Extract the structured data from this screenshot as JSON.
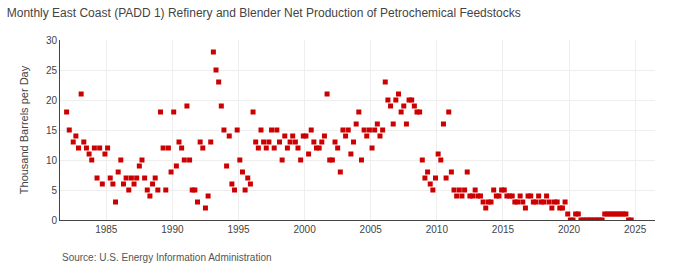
{
  "chart_data": {
    "type": "scatter",
    "title": "Monthly East Coast (PADD 1) Refinery and Blender Net Production of Petrochemical Feedstocks",
    "ylabel": "Thousand Barrels per Day",
    "annotations": [
      "Source: U.S. Energy Information Administration"
    ],
    "color": "#cc0000",
    "marker": "square",
    "grid": true,
    "xlim": [
      1981.5,
      2026.5
    ],
    "ylim": [
      0,
      30
    ],
    "xticks": [
      1985,
      1990,
      1995,
      2000,
      2005,
      2010,
      2015,
      2020,
      2025
    ],
    "yticks": [
      0,
      5,
      10,
      15,
      20,
      25,
      30
    ],
    "x": [
      1982.0,
      1982.2,
      1982.5,
      1982.7,
      1982.9,
      1983.1,
      1983.3,
      1983.5,
      1983.7,
      1983.9,
      1984.1,
      1984.3,
      1984.5,
      1984.7,
      1984.9,
      1985.1,
      1985.3,
      1985.5,
      1985.7,
      1985.9,
      1986.1,
      1986.3,
      1986.5,
      1986.7,
      1986.9,
      1987.1,
      1987.3,
      1987.5,
      1987.7,
      1987.9,
      1988.1,
      1988.3,
      1988.5,
      1988.7,
      1988.9,
      1989.1,
      1989.3,
      1989.5,
      1989.7,
      1989.9,
      1990.1,
      1990.3,
      1990.5,
      1990.7,
      1990.9,
      1991.1,
      1991.3,
      1991.5,
      1991.7,
      1991.9,
      1992.1,
      1992.3,
      1992.5,
      1992.7,
      1992.9,
      1993.1,
      1993.3,
      1993.5,
      1993.7,
      1993.9,
      1994.1,
      1994.3,
      1994.5,
      1994.7,
      1994.9,
      1995.1,
      1995.3,
      1995.5,
      1995.7,
      1995.9,
      1996.1,
      1996.3,
      1996.5,
      1996.7,
      1996.9,
      1997.1,
      1997.3,
      1997.5,
      1997.7,
      1997.9,
      1998.1,
      1998.3,
      1998.5,
      1998.7,
      1998.9,
      1999.1,
      1999.3,
      1999.5,
      1999.7,
      1999.9,
      2000.1,
      2000.3,
      2000.5,
      2000.7,
      2000.9,
      2001.1,
      2001.3,
      2001.5,
      2001.7,
      2001.9,
      2002.1,
      2002.3,
      2002.5,
      2002.7,
      2002.9,
      2003.1,
      2003.3,
      2003.5,
      2003.7,
      2003.9,
      2004.1,
      2004.3,
      2004.5,
      2004.7,
      2004.9,
      2005.1,
      2005.3,
      2005.5,
      2005.7,
      2005.9,
      2006.1,
      2006.3,
      2006.5,
      2006.7,
      2006.9,
      2007.1,
      2007.3,
      2007.5,
      2007.7,
      2007.9,
      2008.1,
      2008.3,
      2008.5,
      2008.7,
      2008.9,
      2009.1,
      2009.3,
      2009.5,
      2009.7,
      2009.9,
      2010.1,
      2010.3,
      2010.5,
      2010.7,
      2010.9,
      2011.1,
      2011.3,
      2011.5,
      2011.7,
      2011.9,
      2012.1,
      2012.3,
      2012.5,
      2012.7,
      2012.9,
      2013.1,
      2013.3,
      2013.5,
      2013.7,
      2013.9,
      2014.1,
      2014.3,
      2014.5,
      2014.7,
      2014.9,
      2015.1,
      2015.3,
      2015.5,
      2015.7,
      2015.9,
      2016.1,
      2016.3,
      2016.5,
      2016.7,
      2016.9,
      2017.1,
      2017.3,
      2017.5,
      2017.7,
      2017.9,
      2018.1,
      2018.3,
      2018.5,
      2018.7,
      2018.9,
      2019.1,
      2019.3,
      2019.5,
      2019.7,
      2019.9,
      2020.1,
      2020.3,
      2020.5,
      2020.7,
      2020.9,
      2021.1,
      2021.3,
      2021.5,
      2021.7,
      2021.9,
      2022.1,
      2022.3,
      2022.5,
      2022.7,
      2022.9,
      2023.1,
      2023.3,
      2023.5,
      2023.7,
      2023.9,
      2024.1,
      2024.3,
      2024.5,
      2024.7
    ],
    "values": [
      18,
      15,
      13,
      14,
      12,
      21,
      13,
      12,
      11,
      10,
      12,
      7,
      12,
      6,
      11,
      12,
      7,
      6,
      3,
      8,
      10,
      6,
      7,
      5,
      7,
      6,
      7,
      9,
      10,
      7,
      5,
      4,
      6,
      7,
      5,
      18,
      12,
      5,
      12,
      8,
      18,
      9,
      13,
      12,
      10,
      19,
      10,
      5,
      5,
      3,
      13,
      12,
      2,
      4,
      13,
      28,
      25,
      23,
      19,
      15,
      9,
      14,
      6,
      5,
      15,
      10,
      8,
      5,
      7,
      6,
      18,
      13,
      12,
      15,
      13,
      12,
      13,
      15,
      12,
      15,
      13,
      10,
      14,
      12,
      13,
      14,
      13,
      12,
      10,
      14,
      14,
      11,
      15,
      13,
      12,
      12,
      13,
      14,
      21,
      10,
      10,
      13,
      12,
      8,
      15,
      14,
      15,
      11,
      13,
      16,
      18,
      10,
      15,
      14,
      15,
      12,
      15,
      16,
      14,
      15,
      23,
      20,
      19,
      16,
      20,
      21,
      18,
      19,
      16,
      20,
      20,
      19,
      18,
      18,
      10,
      7,
      8,
      6,
      5,
      7,
      11,
      10,
      16,
      7,
      18,
      8,
      5,
      4,
      5,
      4,
      5,
      8,
      4,
      4,
      5,
      4,
      4,
      3,
      2,
      3,
      3,
      5,
      4,
      4,
      5,
      5,
      4,
      4,
      4,
      3,
      3,
      4,
      3,
      2,
      4,
      4,
      3,
      3,
      4,
      3,
      3,
      4,
      3,
      2,
      3,
      3,
      2,
      2,
      3,
      1,
      0,
      0,
      1,
      1,
      0,
      0,
      0,
      0,
      0,
      0,
      0,
      0,
      0,
      1,
      1,
      1,
      1,
      1,
      1,
      1,
      1,
      1,
      0,
      0
    ]
  }
}
